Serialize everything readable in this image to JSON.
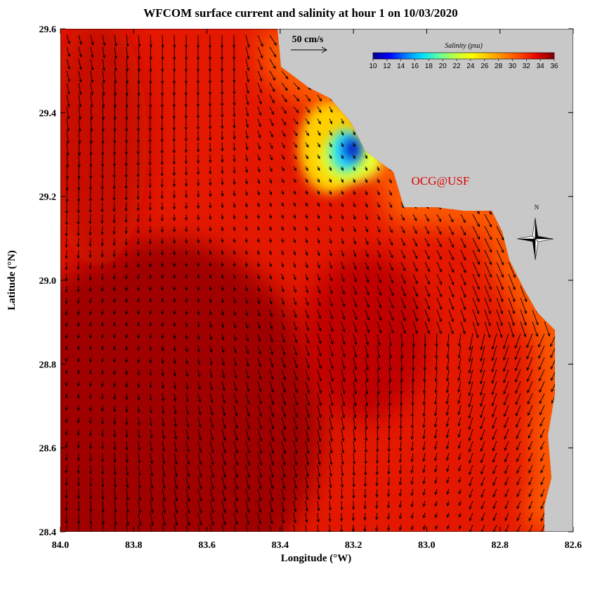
{
  "chart_data": {
    "type": "map",
    "title": "WFCOM surface current and salinity at hour 1 on 10/03/2020",
    "x_label": "Longitude (°W)",
    "y_label": "Latitude (°N)",
    "xlim": [
      84,
      82.6
    ],
    "ylim": [
      28.4,
      29.6
    ],
    "xticks": [
      {
        "value": 84,
        "label": "84.0"
      },
      83.8,
      83.6,
      83.4,
      83.2,
      {
        "value": 83,
        "label": "83.0"
      },
      82.8,
      82.6
    ],
    "yticks": [
      28.4,
      28.6,
      28.8,
      {
        "value": 29,
        "label": "29.0"
      },
      29.2,
      29.4,
      29.6
    ],
    "colorbar": {
      "label": "Salinity (psu)",
      "lim": [
        10,
        36
      ],
      "ticks": [
        10,
        12,
        14,
        16,
        18,
        20,
        22,
        24,
        26,
        28,
        30,
        32,
        34,
        36
      ],
      "colors": [
        "#00008c",
        "#0000ff",
        "#0080ff",
        "#00e0ff",
        "#60ffa0",
        "#c0ff40",
        "#ffff00",
        "#ffc000",
        "#ff8000",
        "#ff4000",
        "#e00000",
        "#800000"
      ]
    },
    "scale_label": "50 cm/s",
    "credit": "OCG@USF",
    "north_label": "N"
  }
}
